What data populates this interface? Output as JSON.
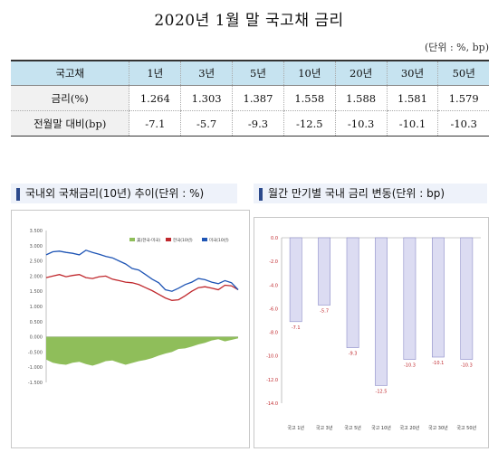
{
  "page": {
    "title": "2020년 1월 말 국고채 금리",
    "unit_note": "(단위 : %, bp)"
  },
  "table": {
    "header_label": "국고채",
    "columns": [
      "1년",
      "3년",
      "5년",
      "10년",
      "20년",
      "30년",
      "50년"
    ],
    "rows": [
      {
        "label": "금리(%)",
        "values": [
          "1.264",
          "1.303",
          "1.387",
          "1.558",
          "1.588",
          "1.581",
          "1.579"
        ]
      },
      {
        "label": "전월말 대비(bp)",
        "values": [
          "-7.1",
          "-5.7",
          "-9.3",
          "-12.5",
          "-10.3",
          "-10.1",
          "-10.3"
        ]
      }
    ]
  },
  "panels": {
    "left_title": "국내외 국채금리(10년) 추이(단위 : %)",
    "right_title": "월간 만기별 국내 금리 변동(단위 : bp)"
  },
  "chart_data": [
    {
      "type": "line",
      "title": "국내외 국채금리(10년) 추이(단위 : %)",
      "y_ticks": [
        "3.500",
        "3.000",
        "2.500",
        "2.000",
        "1.500",
        "1.000",
        "0.500",
        "0.000",
        "-0.500",
        "-1.000",
        "-1.500"
      ],
      "ylim": [
        -1.5,
        3.5
      ],
      "grid": false,
      "legend_position": "top-right",
      "series": [
        {
          "name": "美(한국-미국)",
          "kind": "area",
          "color": "#8fbe5a",
          "values": [
            -0.75,
            -0.85,
            -0.9,
            -0.92,
            -0.85,
            -0.82,
            -0.9,
            -0.95,
            -0.88,
            -0.8,
            -0.78,
            -0.85,
            -0.92,
            -0.86,
            -0.8,
            -0.76,
            -0.7,
            -0.62,
            -0.55,
            -0.5,
            -0.4,
            -0.38,
            -0.32,
            -0.25,
            -0.2,
            -0.12,
            -0.08,
            -0.15,
            -0.1,
            -0.05
          ]
        },
        {
          "name": "한국(10년)",
          "kind": "line",
          "color": "#c0282d",
          "values": [
            1.95,
            2.0,
            2.05,
            1.98,
            2.02,
            2.05,
            1.95,
            1.92,
            1.98,
            2.0,
            1.9,
            1.85,
            1.8,
            1.78,
            1.72,
            1.62,
            1.52,
            1.4,
            1.28,
            1.2,
            1.22,
            1.35,
            1.5,
            1.62,
            1.65,
            1.6,
            1.55,
            1.7,
            1.68,
            1.55
          ]
        },
        {
          "name": "미국(10년)",
          "kind": "line",
          "color": "#1f55b5",
          "values": [
            2.7,
            2.8,
            2.82,
            2.78,
            2.75,
            2.7,
            2.85,
            2.78,
            2.72,
            2.65,
            2.6,
            2.5,
            2.4,
            2.25,
            2.2,
            2.05,
            1.9,
            1.78,
            1.55,
            1.5,
            1.6,
            1.72,
            1.8,
            1.92,
            1.88,
            1.8,
            1.75,
            1.85,
            1.78,
            1.55
          ]
        }
      ]
    },
    {
      "type": "bar",
      "title": "월간 만기별 국내 금리 변동(단위 : bp)",
      "categories": [
        "국고 1년",
        "국고 3년",
        "국고 5년",
        "국고 10년",
        "국고 20년",
        "국고 30년",
        "국고 50년"
      ],
      "values": [
        -7.1,
        -5.7,
        -9.3,
        -12.5,
        -10.3,
        -10.1,
        -10.3
      ],
      "y_ticks": [
        "0.0",
        "-2.0",
        "-4.0",
        "-6.0",
        "-8.0",
        "-10.0",
        "-12.0",
        "-14.0"
      ],
      "ylim": [
        -14,
        0
      ],
      "bar_color": "#dcdcf2",
      "bar_edge": "#8c8cc8",
      "label_color": "#c0282d"
    }
  ]
}
